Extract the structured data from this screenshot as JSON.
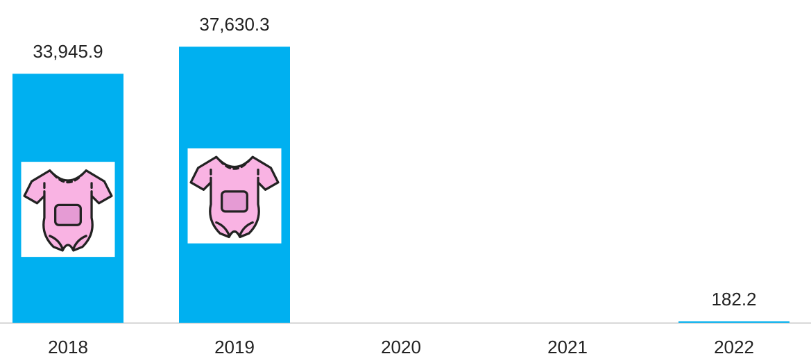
{
  "chart_data": {
    "type": "bar",
    "categories": [
      "2018",
      "2019",
      "2020",
      "2021",
      "2022"
    ],
    "values": [
      33945.9,
      37630.3,
      null,
      null,
      182.2
    ],
    "value_labels": [
      "33,945.9",
      "37,630.3",
      null,
      null,
      "182.2"
    ],
    "color": "#00b0f0",
    "ylim": [
      0,
      44000
    ]
  }
}
